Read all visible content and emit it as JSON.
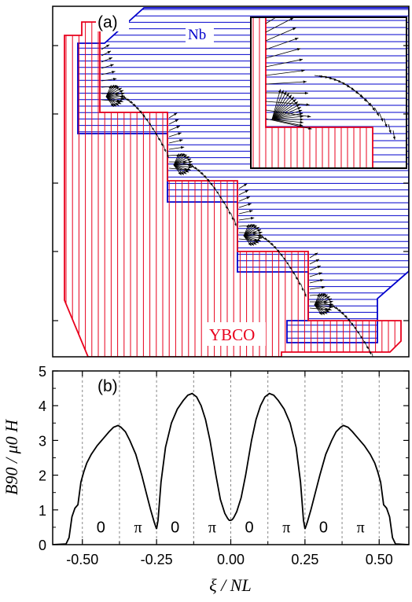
{
  "panel_a": {
    "label": "(a)",
    "material_top": "Nb",
    "material_bottom": "YBCO",
    "colors": {
      "nb": "#0000cc",
      "ybco": "#e8001c",
      "arrows": "#000000"
    }
  },
  "chart_data": {
    "type": "line",
    "panel_label": "(b)",
    "title": "",
    "xlabel": "ξ / NL",
    "ylabel": "B90 / μ0 H",
    "xlim": [
      -0.6,
      0.6
    ],
    "ylim": [
      0,
      5
    ],
    "x_ticks": [
      "-0.50",
      "-0.25",
      "0.00",
      "0.25",
      "0.50"
    ],
    "y_ticks": [
      "0",
      "1",
      "2",
      "3",
      "4",
      "5"
    ],
    "grid": false,
    "dashed_lines_x": [
      -0.5,
      -0.375,
      -0.25,
      -0.125,
      0.0,
      0.125,
      0.25,
      0.375,
      0.5
    ],
    "segment_labels": [
      {
        "x": -0.4375,
        "text": "0"
      },
      {
        "x": -0.3125,
        "text": "π"
      },
      {
        "x": -0.1875,
        "text": "0"
      },
      {
        "x": -0.0625,
        "text": "π"
      },
      {
        "x": 0.0625,
        "text": "0"
      },
      {
        "x": 0.1875,
        "text": "π"
      },
      {
        "x": 0.3125,
        "text": "0"
      },
      {
        "x": 0.4375,
        "text": "π"
      }
    ],
    "series": [
      {
        "x": [
          -0.6,
          -0.555,
          -0.545,
          -0.535,
          -0.525,
          -0.515,
          -0.505,
          -0.495,
          -0.485,
          -0.47,
          -0.45,
          -0.43,
          -0.41,
          -0.395,
          -0.38,
          -0.37,
          -0.355,
          -0.34,
          -0.32,
          -0.3,
          -0.285,
          -0.27,
          -0.258,
          -0.25,
          -0.245,
          -0.235,
          -0.22,
          -0.2,
          -0.18,
          -0.16,
          -0.145,
          -0.13,
          -0.115,
          -0.1,
          -0.085,
          -0.07,
          -0.05,
          -0.035,
          -0.02,
          -0.01,
          -0.005,
          0.0,
          0.005,
          0.01,
          0.02,
          0.035,
          0.05,
          0.07,
          0.085,
          0.1,
          0.115,
          0.13,
          0.145,
          0.16,
          0.18,
          0.2,
          0.22,
          0.235,
          0.245,
          0.25,
          0.258,
          0.27,
          0.285,
          0.3,
          0.32,
          0.34,
          0.355,
          0.37,
          0.38,
          0.395,
          0.41,
          0.43,
          0.45,
          0.47,
          0.485,
          0.495,
          0.505,
          0.515,
          0.525,
          0.535,
          0.545,
          0.555,
          0.6
        ],
        "y": [
          0.0,
          0.02,
          0.2,
          0.8,
          1.05,
          1.15,
          1.8,
          2.1,
          2.35,
          2.6,
          2.85,
          3.05,
          3.25,
          3.38,
          3.43,
          3.38,
          3.25,
          3.0,
          2.6,
          2.0,
          1.5,
          1.0,
          0.65,
          0.45,
          0.7,
          1.8,
          2.8,
          3.5,
          3.9,
          4.15,
          4.3,
          4.35,
          4.25,
          4.0,
          3.6,
          3.0,
          2.0,
          1.3,
          0.9,
          0.75,
          0.7,
          0.7,
          0.72,
          0.78,
          0.95,
          1.35,
          2.0,
          3.0,
          3.6,
          4.0,
          4.25,
          4.35,
          4.3,
          4.15,
          3.9,
          3.5,
          2.8,
          1.8,
          0.7,
          0.45,
          0.65,
          1.0,
          1.5,
          2.0,
          2.6,
          3.0,
          3.25,
          3.38,
          3.43,
          3.38,
          3.25,
          3.05,
          2.85,
          2.6,
          2.35,
          2.1,
          1.8,
          1.15,
          1.05,
          0.8,
          0.2,
          0.02,
          0.0
        ]
      }
    ]
  }
}
